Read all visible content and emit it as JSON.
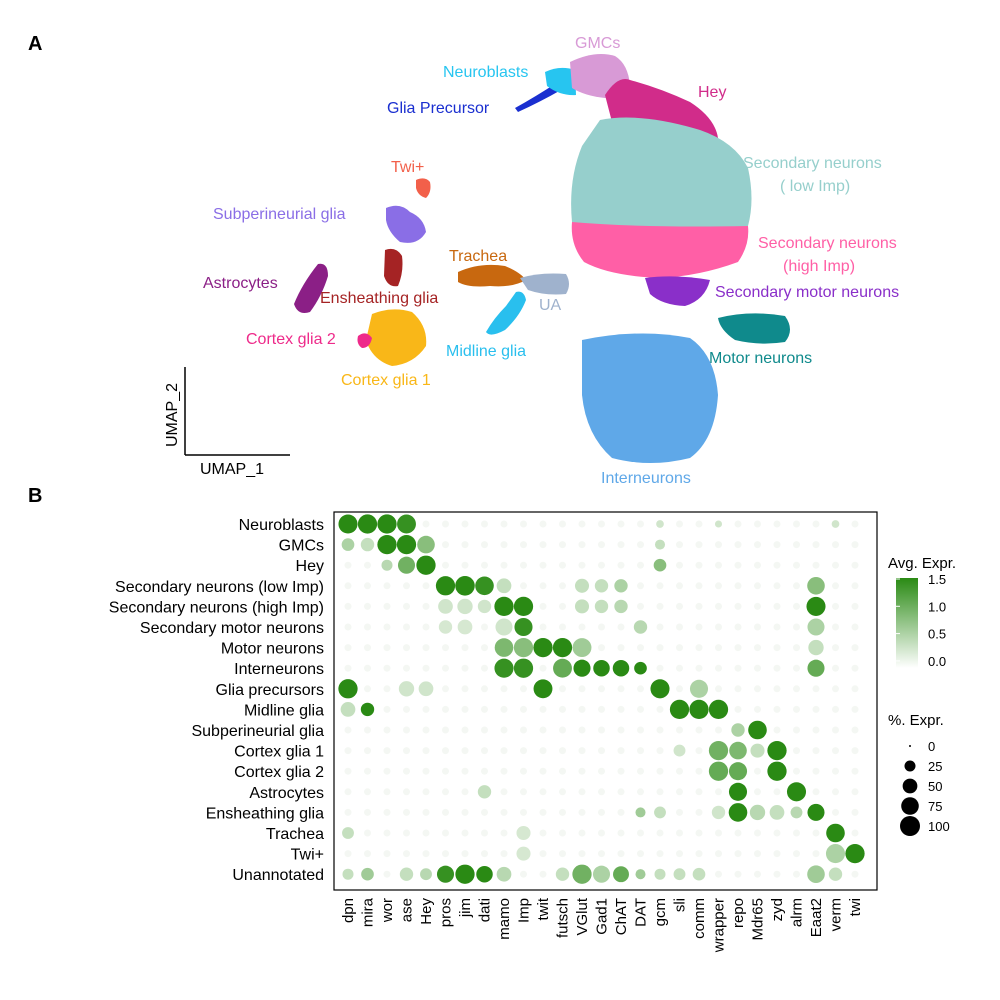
{
  "panels": {
    "a": "A",
    "b": "B"
  },
  "umap": {
    "xlabel": "UMAP_1",
    "ylabel": "UMAP_2",
    "clusters": [
      {
        "label": "GMCs",
        "color": "#d89ad6"
      },
      {
        "label": "Neuroblasts",
        "color": "#27c5f0"
      },
      {
        "label": "Glia Precursor",
        "color": "#1a2fd0"
      },
      {
        "label": "Hey",
        "color": "#d12c8a"
      },
      {
        "label": "Secondary neurons",
        "label2": "( low Imp)",
        "color": "#96cfcc"
      },
      {
        "label": "Secondary neurons",
        "label2": "(high Imp)",
        "color": "#ff5fa6"
      },
      {
        "label": "Secondary motor neurons",
        "color": "#8a2fc9"
      },
      {
        "label": "Motor neurons",
        "color": "#0f8a8c"
      },
      {
        "label": "Interneurons",
        "color": "#5fa8e8"
      },
      {
        "label": "Twi+",
        "color": "#f2604a"
      },
      {
        "label": "Subperineurial glia",
        "color": "#8a6ee6"
      },
      {
        "label": "Astrocytes",
        "color": "#8b1f86"
      },
      {
        "label": "Ensheathing glia",
        "color": "#a52324"
      },
      {
        "label": "Trachea",
        "color": "#c8680f"
      },
      {
        "label": "UA",
        "color": "#9fb2cd"
      },
      {
        "label": "Cortex glia 2",
        "color": "#ee2a8a"
      },
      {
        "label": "Midline glia",
        "color": "#29bfee"
      },
      {
        "label": "Cortex glia 1",
        "color": "#f9b718"
      }
    ]
  },
  "chart_data": {
    "type": "dotplot",
    "rows": [
      "Neuroblasts",
      "GMCs",
      "Hey",
      "Secondary neurons (low Imp)",
      "Secondary neurons (high Imp)",
      "Secondary motor neurons",
      "Motor neurons",
      "Interneurons",
      "Glia precursors",
      "Midline glia",
      "Subperineurial glia",
      "Cortex glia 1",
      "Cortex glia 2",
      "Astrocytes",
      "Ensheathing glia",
      "Trachea",
      "Twi+",
      "Unannotated"
    ],
    "genes": [
      "dpn",
      "mira",
      "wor",
      "ase",
      "Hey",
      "pros",
      "jim",
      "dati",
      "mamo",
      "Imp",
      "twit",
      "futsch",
      "VGlut",
      "Gad1",
      "ChAT",
      "DAT",
      "gcm",
      "sli",
      "comm",
      "wrapper",
      "repo",
      "Mdr65",
      "zyd",
      "alrm",
      "Eaat2",
      "verm",
      "twi"
    ],
    "points": [
      {
        "r": 0,
        "g": 0,
        "p": 90,
        "e": 1.5
      },
      {
        "r": 0,
        "g": 1,
        "p": 92,
        "e": 1.5
      },
      {
        "r": 0,
        "g": 2,
        "p": 92,
        "e": 1.5
      },
      {
        "r": 0,
        "g": 3,
        "p": 88,
        "e": 1.4
      },
      {
        "r": 0,
        "g": 16,
        "p": 10,
        "e": 0.1
      },
      {
        "r": 0,
        "g": 19,
        "p": 8,
        "e": 0.1
      },
      {
        "r": 0,
        "g": 25,
        "p": 10,
        "e": 0.1
      },
      {
        "r": 1,
        "g": 0,
        "p": 35,
        "e": 0.4
      },
      {
        "r": 1,
        "g": 1,
        "p": 40,
        "e": 0.2
      },
      {
        "r": 1,
        "g": 2,
        "p": 92,
        "e": 1.5
      },
      {
        "r": 1,
        "g": 3,
        "p": 92,
        "e": 1.5
      },
      {
        "r": 1,
        "g": 4,
        "p": 75,
        "e": 0.7
      },
      {
        "r": 1,
        "g": 16,
        "p": 20,
        "e": 0.2
      },
      {
        "r": 2,
        "g": 2,
        "p": 25,
        "e": 0.3
      },
      {
        "r": 2,
        "g": 3,
        "p": 70,
        "e": 0.9
      },
      {
        "r": 2,
        "g": 4,
        "p": 92,
        "e": 1.5
      },
      {
        "r": 2,
        "g": 16,
        "p": 35,
        "e": 0.7
      },
      {
        "r": 3,
        "g": 5,
        "p": 92,
        "e": 1.5
      },
      {
        "r": 3,
        "g": 6,
        "p": 95,
        "e": 1.5
      },
      {
        "r": 3,
        "g": 7,
        "p": 85,
        "e": 1.4
      },
      {
        "r": 3,
        "g": 8,
        "p": 50,
        "e": 0.2
      },
      {
        "r": 3,
        "g": 12,
        "p": 45,
        "e": 0.2
      },
      {
        "r": 3,
        "g": 13,
        "p": 40,
        "e": 0.2
      },
      {
        "r": 3,
        "g": 14,
        "p": 40,
        "e": 0.4
      },
      {
        "r": 3,
        "g": 24,
        "p": 75,
        "e": 0.7
      },
      {
        "r": 4,
        "g": 5,
        "p": 50,
        "e": 0.1
      },
      {
        "r": 4,
        "g": 6,
        "p": 55,
        "e": 0.1
      },
      {
        "r": 4,
        "g": 7,
        "p": 40,
        "e": 0.1
      },
      {
        "r": 4,
        "g": 8,
        "p": 92,
        "e": 1.5
      },
      {
        "r": 4,
        "g": 9,
        "p": 92,
        "e": 1.5
      },
      {
        "r": 4,
        "g": 12,
        "p": 45,
        "e": 0.2
      },
      {
        "r": 4,
        "g": 13,
        "p": 40,
        "e": 0.2
      },
      {
        "r": 4,
        "g": 14,
        "p": 40,
        "e": 0.3
      },
      {
        "r": 4,
        "g": 24,
        "p": 90,
        "e": 1.5
      },
      {
        "r": 5,
        "g": 5,
        "p": 40,
        "e": 0.05
      },
      {
        "r": 5,
        "g": 6,
        "p": 50,
        "e": 0.05
      },
      {
        "r": 5,
        "g": 8,
        "p": 70,
        "e": 0.1
      },
      {
        "r": 5,
        "g": 9,
        "p": 80,
        "e": 1.4
      },
      {
        "r": 5,
        "g": 15,
        "p": 40,
        "e": 0.3
      },
      {
        "r": 5,
        "g": 24,
        "p": 70,
        "e": 0.4
      },
      {
        "r": 6,
        "g": 8,
        "p": 85,
        "e": 0.8
      },
      {
        "r": 6,
        "g": 9,
        "p": 92,
        "e": 0.7
      },
      {
        "r": 6,
        "g": 10,
        "p": 92,
        "e": 1.5
      },
      {
        "r": 6,
        "g": 11,
        "p": 92,
        "e": 1.5
      },
      {
        "r": 6,
        "g": 12,
        "p": 88,
        "e": 0.5
      },
      {
        "r": 6,
        "g": 24,
        "p": 55,
        "e": 0.2
      },
      {
        "r": 7,
        "g": 8,
        "p": 90,
        "e": 1.4
      },
      {
        "r": 7,
        "g": 9,
        "p": 92,
        "e": 1.4
      },
      {
        "r": 7,
        "g": 11,
        "p": 88,
        "e": 1.0
      },
      {
        "r": 7,
        "g": 12,
        "p": 70,
        "e": 1.5
      },
      {
        "r": 7,
        "g": 13,
        "p": 65,
        "e": 1.5
      },
      {
        "r": 7,
        "g": 14,
        "p": 65,
        "e": 1.5
      },
      {
        "r": 7,
        "g": 15,
        "p": 35,
        "e": 1.5
      },
      {
        "r": 7,
        "g": 24,
        "p": 70,
        "e": 1.0
      },
      {
        "r": 8,
        "g": 0,
        "p": 92,
        "e": 1.5
      },
      {
        "r": 8,
        "g": 3,
        "p": 55,
        "e": 0.1
      },
      {
        "r": 8,
        "g": 4,
        "p": 50,
        "e": 0.1
      },
      {
        "r": 8,
        "g": 10,
        "p": 88,
        "e": 1.5
      },
      {
        "r": 8,
        "g": 16,
        "p": 90,
        "e": 1.5
      },
      {
        "r": 8,
        "g": 18,
        "p": 80,
        "e": 0.4
      },
      {
        "r": 9,
        "g": 0,
        "p": 50,
        "e": 0.2
      },
      {
        "r": 9,
        "g": 1,
        "p": 40,
        "e": 1.5
      },
      {
        "r": 9,
        "g": 17,
        "p": 92,
        "e": 1.5
      },
      {
        "r": 9,
        "g": 18,
        "p": 92,
        "e": 1.5
      },
      {
        "r": 9,
        "g": 19,
        "p": 92,
        "e": 1.5
      },
      {
        "r": 10,
        "g": 20,
        "p": 40,
        "e": 0.4
      },
      {
        "r": 10,
        "g": 21,
        "p": 85,
        "e": 1.5
      },
      {
        "r": 11,
        "g": 17,
        "p": 30,
        "e": 0.1
      },
      {
        "r": 11,
        "g": 19,
        "p": 92,
        "e": 0.9
      },
      {
        "r": 11,
        "g": 20,
        "p": 75,
        "e": 0.8
      },
      {
        "r": 11,
        "g": 21,
        "p": 45,
        "e": 0.2
      },
      {
        "r": 11,
        "g": 22,
        "p": 92,
        "e": 1.5
      },
      {
        "r": 12,
        "g": 19,
        "p": 92,
        "e": 1.0
      },
      {
        "r": 12,
        "g": 20,
        "p": 80,
        "e": 1.0
      },
      {
        "r": 12,
        "g": 22,
        "p": 92,
        "e": 1.5
      },
      {
        "r": 13,
        "g": 7,
        "p": 40,
        "e": 0.2
      },
      {
        "r": 13,
        "g": 20,
        "p": 80,
        "e": 1.5
      },
      {
        "r": 13,
        "g": 23,
        "p": 90,
        "e": 1.5
      },
      {
        "r": 14,
        "g": 15,
        "p": 20,
        "e": 0.5
      },
      {
        "r": 14,
        "g": 16,
        "p": 30,
        "e": 0.2
      },
      {
        "r": 14,
        "g": 19,
        "p": 40,
        "e": 0.1
      },
      {
        "r": 14,
        "g": 20,
        "p": 85,
        "e": 1.5
      },
      {
        "r": 14,
        "g": 21,
        "p": 55,
        "e": 0.3
      },
      {
        "r": 14,
        "g": 22,
        "p": 50,
        "e": 0.2
      },
      {
        "r": 14,
        "g": 23,
        "p": 30,
        "e": 0.3
      },
      {
        "r": 14,
        "g": 24,
        "p": 70,
        "e": 1.5
      },
      {
        "r": 15,
        "g": 0,
        "p": 30,
        "e": 0.2
      },
      {
        "r": 15,
        "g": 9,
        "p": 45,
        "e": 0.05
      },
      {
        "r": 15,
        "g": 25,
        "p": 85,
        "e": 1.5
      },
      {
        "r": 16,
        "g": 9,
        "p": 45,
        "e": 0.05
      },
      {
        "r": 16,
        "g": 25,
        "p": 90,
        "e": 0.4
      },
      {
        "r": 16,
        "g": 26,
        "p": 92,
        "e": 1.5
      },
      {
        "r": 17,
        "g": 0,
        "p": 25,
        "e": 0.2
      },
      {
        "r": 17,
        "g": 1,
        "p": 35,
        "e": 0.5
      },
      {
        "r": 17,
        "g": 3,
        "p": 40,
        "e": 0.2
      },
      {
        "r": 17,
        "g": 4,
        "p": 30,
        "e": 0.3
      },
      {
        "r": 17,
        "g": 5,
        "p": 70,
        "e": 1.4
      },
      {
        "r": 17,
        "g": 6,
        "p": 92,
        "e": 1.5
      },
      {
        "r": 17,
        "g": 7,
        "p": 65,
        "e": 1.5
      },
      {
        "r": 17,
        "g": 8,
        "p": 50,
        "e": 0.3
      },
      {
        "r": 17,
        "g": 11,
        "p": 40,
        "e": 0.2
      },
      {
        "r": 17,
        "g": 12,
        "p": 92,
        "e": 0.9
      },
      {
        "r": 17,
        "g": 13,
        "p": 70,
        "e": 0.4
      },
      {
        "r": 17,
        "g": 14,
        "p": 60,
        "e": 1.0
      },
      {
        "r": 17,
        "g": 15,
        "p": 20,
        "e": 0.5
      },
      {
        "r": 17,
        "g": 16,
        "p": 25,
        "e": 0.2
      },
      {
        "r": 17,
        "g": 17,
        "p": 30,
        "e": 0.2
      },
      {
        "r": 17,
        "g": 18,
        "p": 35,
        "e": 0.2
      },
      {
        "r": 17,
        "g": 24,
        "p": 75,
        "e": 0.5
      },
      {
        "r": 17,
        "g": 25,
        "p": 40,
        "e": 0.2
      }
    ],
    "color_scale": {
      "title": "Avg. Expr.",
      "ticks": [
        "1.5",
        "1.0",
        "0.5",
        "0.0"
      ],
      "min": -0.3,
      "max": 1.5,
      "low": "#ffffff",
      "high": "#2a8a14"
    },
    "size_scale": {
      "title": "%. Expr.",
      "ticks": [
        "0",
        "25",
        "50",
        "75",
        "100"
      ]
    }
  }
}
